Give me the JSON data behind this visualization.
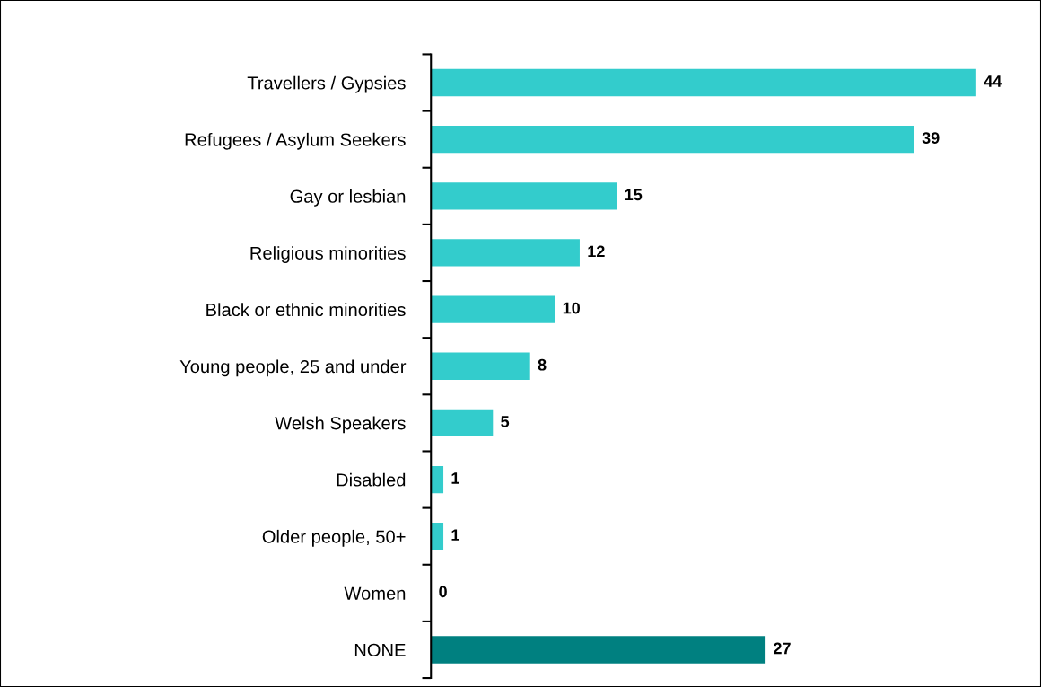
{
  "chart_data": {
    "type": "bar",
    "orientation": "horizontal",
    "categories": [
      "Travellers / Gypsies",
      "Refugees / Asylum Seekers",
      "Gay or lesbian",
      "Religious minorities",
      "Black or ethnic minorities",
      "Young people, 25 and under",
      "Welsh Speakers",
      "Disabled",
      "Older people, 50+",
      "Women",
      "NONE"
    ],
    "values": [
      44,
      39,
      15,
      12,
      10,
      8,
      5,
      1,
      1,
      0,
      27
    ],
    "colors": [
      "#33cccc",
      "#33cccc",
      "#33cccc",
      "#33cccc",
      "#33cccc",
      "#33cccc",
      "#33cccc",
      "#33cccc",
      "#33cccc",
      "#33cccc",
      "#008080"
    ],
    "data_labels": true,
    "grid": false,
    "legend": false,
    "tick_labels": "y"
  }
}
